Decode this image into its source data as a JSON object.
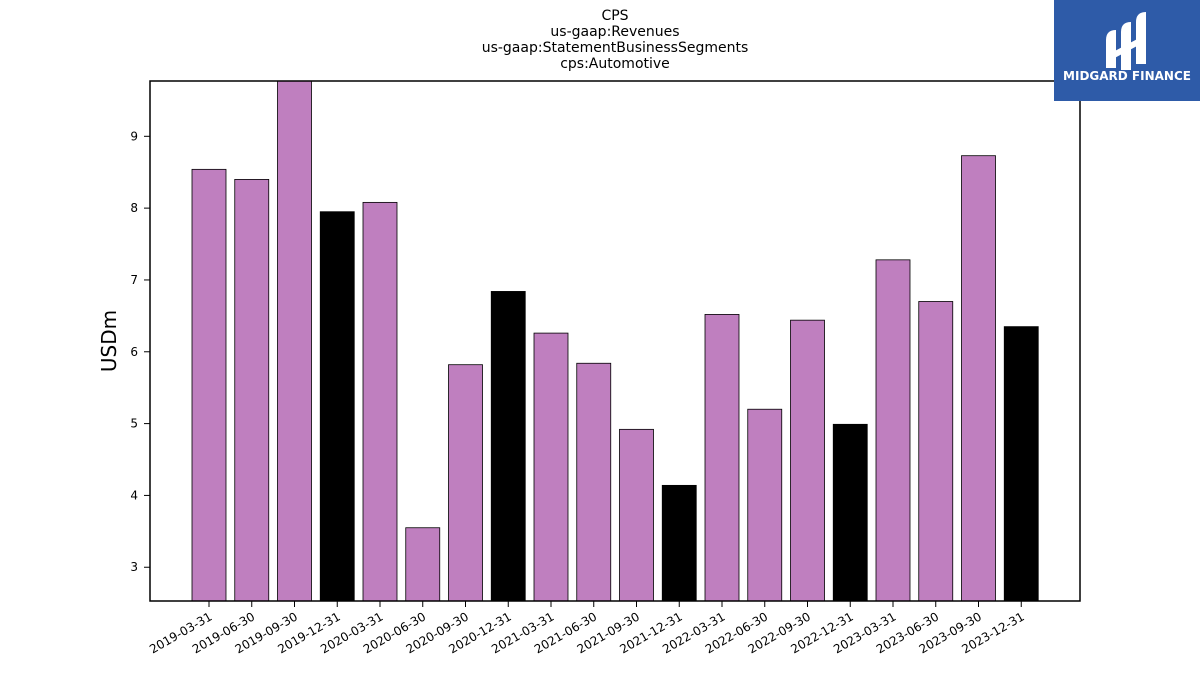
{
  "chart_data": {
    "type": "bar",
    "title_lines": [
      "CPS",
      "us-gaap:Revenues",
      "us-gaap:StatementBusinessSegments",
      "cps:Automotive"
    ],
    "xlabel": "",
    "ylabel": "USDm",
    "ylim": [
      2.53,
      9.77
    ],
    "yticks": [
      3,
      4,
      5,
      6,
      7,
      8,
      9
    ],
    "categories": [
      "2019-03-31",
      "2019-06-30",
      "2019-09-30",
      "2019-12-31",
      "2020-03-31",
      "2020-06-30",
      "2020-09-30",
      "2020-12-31",
      "2021-03-31",
      "2021-06-30",
      "2021-09-30",
      "2021-12-31",
      "2022-03-31",
      "2022-06-30",
      "2022-09-30",
      "2022-12-31",
      "2023-03-31",
      "2023-06-30",
      "2023-09-30",
      "2023-12-31"
    ],
    "values": [
      8.54,
      8.4,
      9.8,
      7.95,
      8.08,
      3.55,
      5.82,
      6.84,
      6.26,
      5.84,
      4.92,
      4.14,
      6.52,
      5.2,
      6.44,
      4.99,
      7.28,
      6.7,
      8.73,
      6.35
    ],
    "colors": {
      "regular": "#bf7fbf",
      "year_end": "#000000",
      "edge": "#000000"
    },
    "year_end_categories": [
      "2019-12-31",
      "2020-12-31",
      "2021-12-31",
      "2022-12-31",
      "2023-12-31"
    ],
    "grid": false
  },
  "logo": {
    "text": "MIDGARD FINANCE",
    "background": "#2e5ba8"
  }
}
